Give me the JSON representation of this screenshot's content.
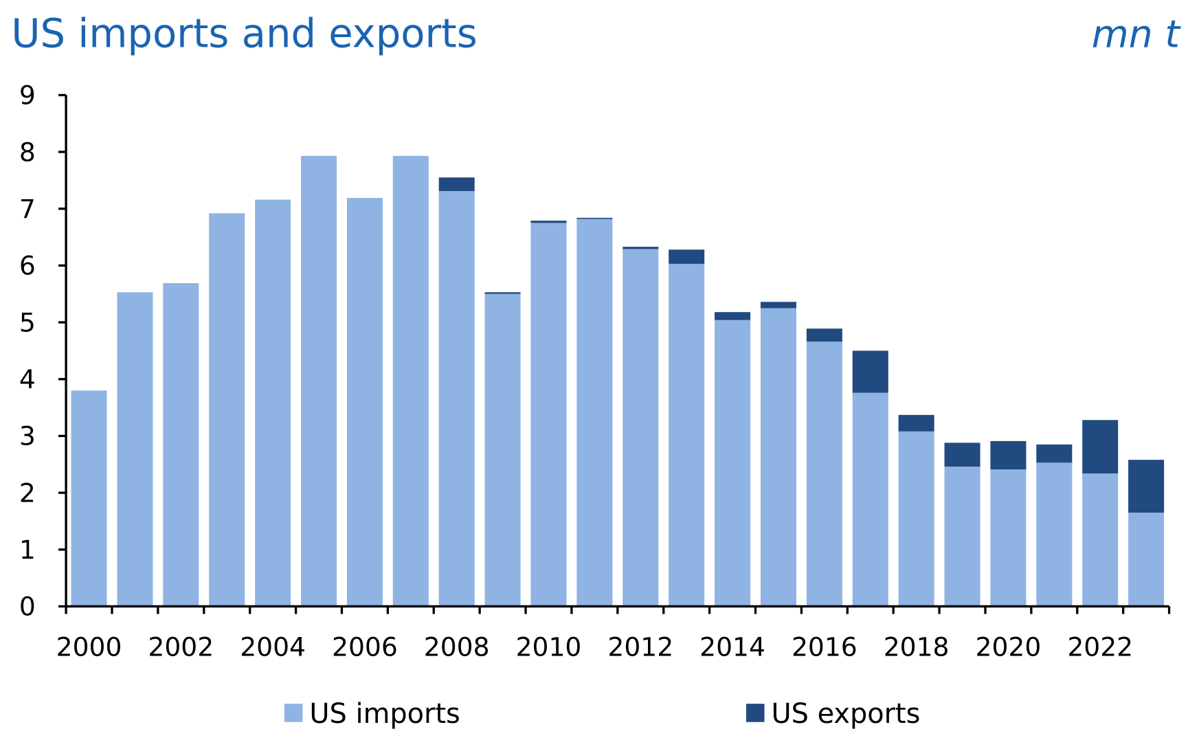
{
  "chart_data": {
    "type": "bar",
    "stacked": true,
    "title": "US imports and exports",
    "unit_label": "mn t",
    "xlabel": "",
    "ylabel": "",
    "ylim": [
      0,
      9
    ],
    "yticks": [
      0,
      1,
      2,
      3,
      4,
      5,
      6,
      7,
      8,
      9
    ],
    "categories": [
      2000,
      2001,
      2002,
      2003,
      2004,
      2005,
      2006,
      2007,
      2008,
      2009,
      2010,
      2011,
      2012,
      2013,
      2014,
      2015,
      2016,
      2017,
      2018,
      2019,
      2020,
      2021,
      2022,
      2023
    ],
    "xtick_labels": [
      "2000",
      "2002",
      "2004",
      "2006",
      "2008",
      "2010",
      "2012",
      "2014",
      "2016",
      "2018",
      "2020",
      "2022"
    ],
    "series": [
      {
        "name": "US imports",
        "color": "#8fb4e3",
        "values": [
          3.8,
          5.53,
          5.69,
          6.92,
          7.16,
          7.93,
          7.19,
          7.93,
          7.31,
          5.5,
          6.75,
          6.82,
          6.29,
          6.03,
          5.04,
          5.25,
          4.66,
          3.76,
          3.08,
          2.46,
          2.41,
          2.53,
          2.34,
          1.65
        ]
      },
      {
        "name": "US exports",
        "color": "#214a80",
        "values": [
          0,
          0,
          0,
          0,
          0,
          0,
          0,
          0,
          0.24,
          0.03,
          0.04,
          0.02,
          0.04,
          0.25,
          0.14,
          0.11,
          0.23,
          0.74,
          0.29,
          0.42,
          0.5,
          0.32,
          0.94,
          0.93
        ]
      }
    ],
    "legend_position": "bottom",
    "grid": false
  }
}
